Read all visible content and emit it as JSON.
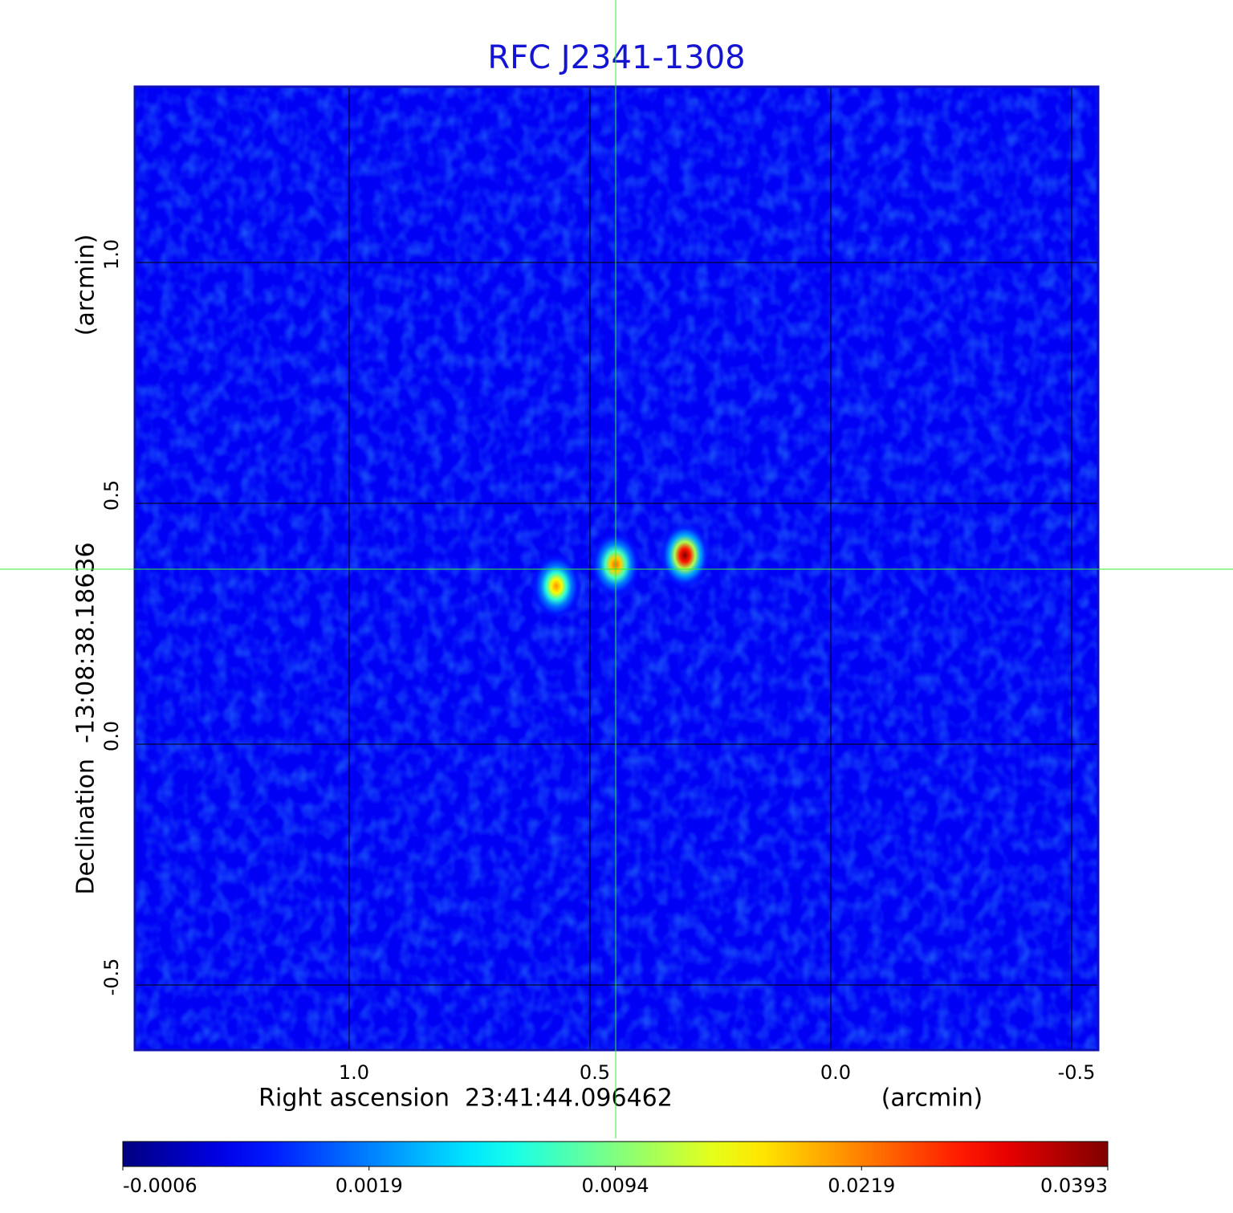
{
  "chart_data": {
    "type": "image",
    "title": "RFC J2341-1308",
    "x_label": "Right ascension  23:41:44.096462",
    "x_unit": "(arcmin)",
    "y_label": "Declination  -13:08:38.18636",
    "y_unit": "(arcmin)",
    "xlim": [
      1.445,
      -0.555
    ],
    "ylim": [
      -0.635,
      1.365
    ],
    "xticks": [
      {
        "value": 1,
        "label": "1.0"
      },
      0.5,
      {
        "value": 0,
        "label": "0.0"
      },
      -0.5
    ],
    "yticks": [
      {
        "value": 1,
        "label": "1.0"
      },
      0.5,
      {
        "value": 0,
        "label": "0.0"
      },
      -0.5
    ],
    "grid": true,
    "colormap": "jet",
    "sources": {
      "x": [
        0.57,
        0.447,
        0.303
      ],
      "y": [
        0.328,
        0.373,
        0.392
      ],
      "peak": [
        0.021,
        0.024,
        0.0393
      ]
    },
    "colorbar": {
      "ticks": [
        -0.0006,
        0.0019,
        0.0094,
        0.0219,
        0.0393
      ]
    }
  }
}
